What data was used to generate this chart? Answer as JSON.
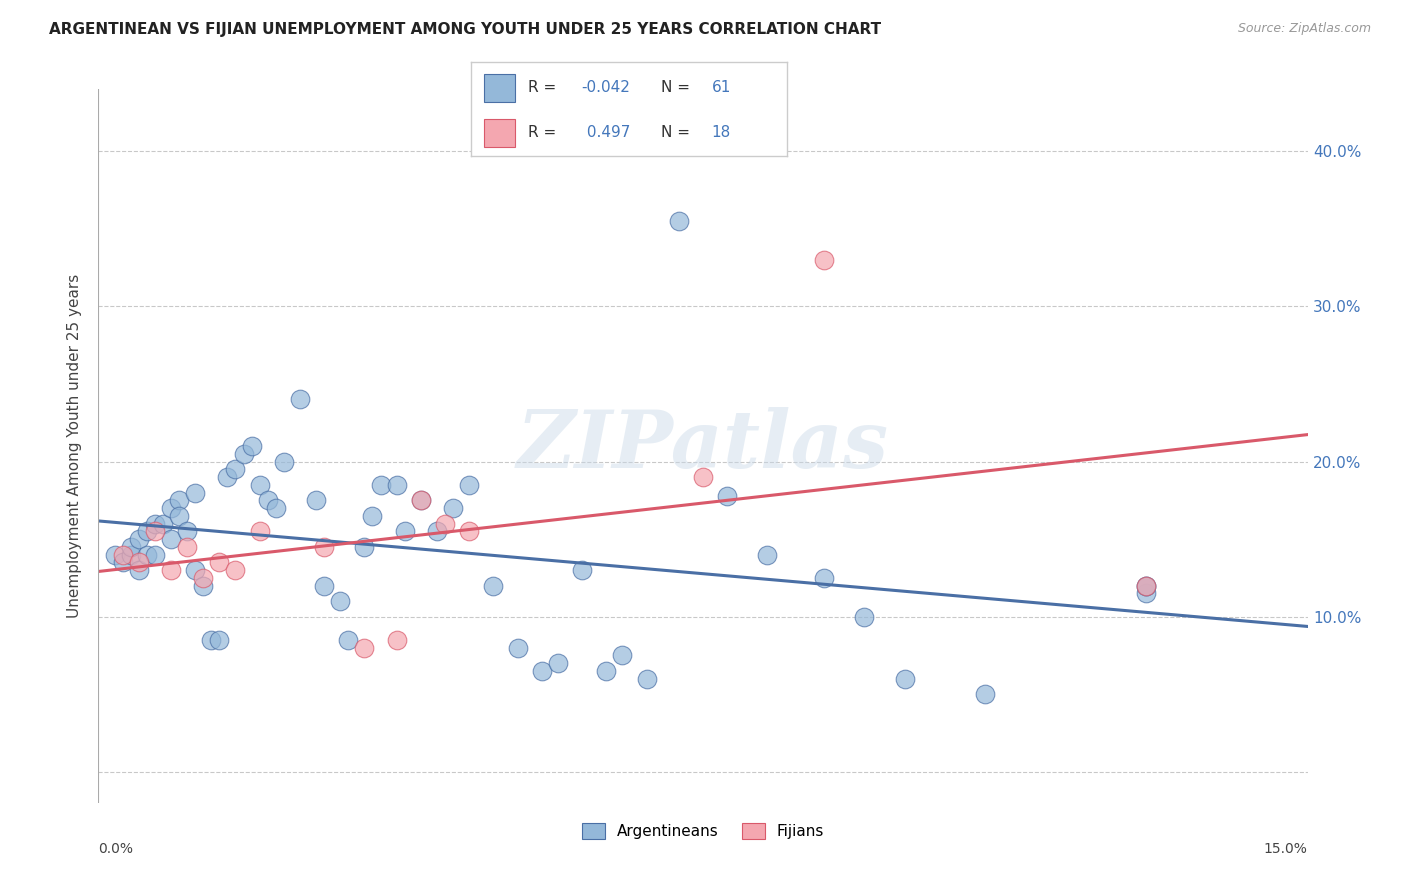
{
  "title": "ARGENTINEAN VS FIJIAN UNEMPLOYMENT AMONG YOUTH UNDER 25 YEARS CORRELATION CHART",
  "source": "Source: ZipAtlas.com",
  "ylabel": "Unemployment Among Youth under 25 years",
  "xlim": [
    0.0,
    0.15
  ],
  "ylim": [
    -0.02,
    0.44
  ],
  "yticks": [
    0.0,
    0.1,
    0.2,
    0.3,
    0.4
  ],
  "ytick_labels_right": [
    "",
    "10.0%",
    "20.0%",
    "30.0%",
    "40.0%"
  ],
  "blue_color": "#94B8D9",
  "pink_color": "#F4A7B0",
  "line_blue": "#4A6FA5",
  "line_pink": "#D9596A",
  "watermark": "ZIPatlas",
  "arg_x": [
    0.002,
    0.003,
    0.004,
    0.004,
    0.005,
    0.005,
    0.006,
    0.006,
    0.007,
    0.007,
    0.008,
    0.009,
    0.009,
    0.01,
    0.01,
    0.011,
    0.012,
    0.012,
    0.013,
    0.014,
    0.015,
    0.016,
    0.017,
    0.018,
    0.019,
    0.02,
    0.021,
    0.022,
    0.023,
    0.025,
    0.027,
    0.028,
    0.03,
    0.031,
    0.033,
    0.034,
    0.035,
    0.037,
    0.038,
    0.04,
    0.042,
    0.044,
    0.046,
    0.049,
    0.052,
    0.055,
    0.057,
    0.06,
    0.063,
    0.065,
    0.068,
    0.072,
    0.078,
    0.083,
    0.09,
    0.095,
    0.1,
    0.11,
    0.13,
    0.13,
    0.13
  ],
  "arg_y": [
    0.14,
    0.135,
    0.14,
    0.145,
    0.15,
    0.13,
    0.155,
    0.14,
    0.16,
    0.14,
    0.16,
    0.15,
    0.17,
    0.175,
    0.165,
    0.155,
    0.18,
    0.13,
    0.12,
    0.085,
    0.085,
    0.19,
    0.195,
    0.205,
    0.21,
    0.185,
    0.175,
    0.17,
    0.2,
    0.24,
    0.175,
    0.12,
    0.11,
    0.085,
    0.145,
    0.165,
    0.185,
    0.185,
    0.155,
    0.175,
    0.155,
    0.17,
    0.185,
    0.12,
    0.08,
    0.065,
    0.07,
    0.13,
    0.065,
    0.075,
    0.06,
    0.355,
    0.178,
    0.14,
    0.125,
    0.1,
    0.06,
    0.05,
    0.115,
    0.12,
    0.12
  ],
  "fij_x": [
    0.003,
    0.005,
    0.007,
    0.009,
    0.011,
    0.013,
    0.015,
    0.017,
    0.02,
    0.028,
    0.033,
    0.037,
    0.04,
    0.043,
    0.046,
    0.075,
    0.09,
    0.13
  ],
  "fij_y": [
    0.14,
    0.135,
    0.155,
    0.13,
    0.145,
    0.125,
    0.135,
    0.13,
    0.155,
    0.145,
    0.08,
    0.085,
    0.175,
    0.16,
    0.155,
    0.19,
    0.33,
    0.12
  ]
}
